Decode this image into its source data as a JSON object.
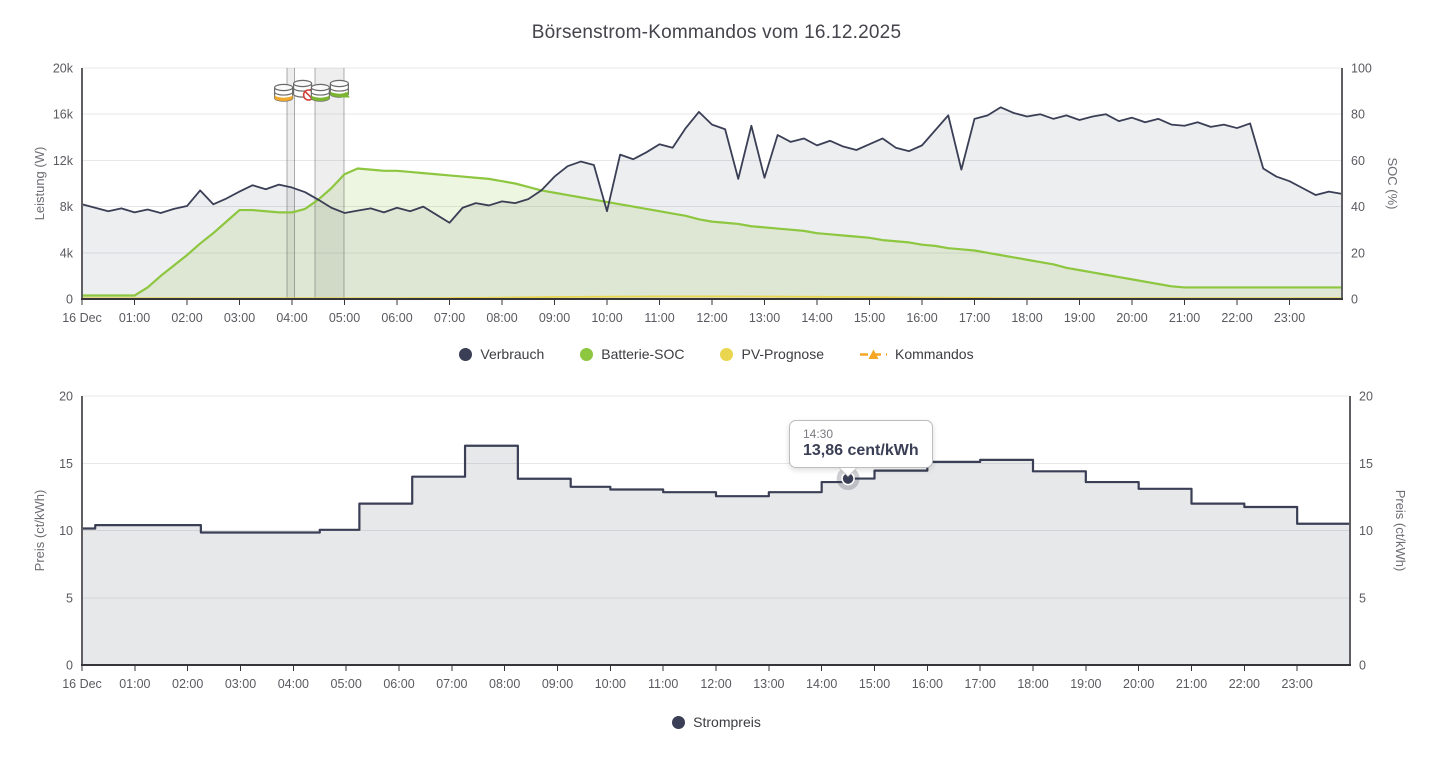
{
  "page": {
    "title": "Börsenstrom-Kommandos vom 16.12.2025"
  },
  "colors": {
    "navy": "#3a3f55",
    "green": "#8dc63f",
    "yellow": "#e9d54e",
    "orange": "#f0a92e",
    "red": "#d4403a",
    "badge_green": "#7cb532",
    "grid": "#e7e7ea",
    "axis_dark": "#35353a",
    "axis_side": "#5f5f63",
    "tick_text": "#5a5a60",
    "axis_title_text": "#6d6d73",
    "fill_gray": "rgba(58,63,85,0.09)",
    "fill_green": "rgba(141,198,63,0.16)",
    "fill_price": "rgba(58,63,85,0.12)",
    "band_fill": "rgba(125,125,125,0.13)",
    "band_edge": "rgba(110,110,110,0.55)"
  },
  "chart_data": [
    {
      "type": "line",
      "name": "power-soc-chart",
      "x_tick_labels": [
        "16 Dec",
        "01:00",
        "02:00",
        "03:00",
        "04:00",
        "05:00",
        "06:00",
        "07:00",
        "08:00",
        "09:00",
        "10:00",
        "11:00",
        "12:00",
        "13:00",
        "14:00",
        "15:00",
        "16:00",
        "17:00",
        "18:00",
        "19:00",
        "20:00",
        "21:00",
        "22:00",
        "23:00"
      ],
      "x_range_hours": [
        0,
        24
      ],
      "grid": true,
      "y_left": {
        "label": "Leistung (W)",
        "range": [
          0,
          20000
        ],
        "tick_values": [
          0,
          4000,
          8000,
          12000,
          16000,
          20000
        ],
        "tick_labels": [
          "0",
          "4k",
          "8k",
          "12k",
          "16k",
          "20k"
        ]
      },
      "y_right": {
        "label": "SOC (%)",
        "range": [
          0,
          100
        ],
        "tick_values": [
          0,
          20,
          40,
          60,
          80,
          100
        ],
        "tick_labels": [
          "0",
          "20",
          "40",
          "60",
          "80",
          "100"
        ]
      },
      "legend": [
        {
          "label": "Verbrauch",
          "color": "#3a3f55",
          "marker": "circle"
        },
        {
          "label": "Batterie-SOC",
          "color": "#8dc63f",
          "marker": "circle"
        },
        {
          "label": "PV-Prognose",
          "color": "#e9d54e",
          "marker": "circle"
        },
        {
          "label": "Kommandos",
          "color": "#f5a623",
          "marker": "triangle-line"
        }
      ],
      "series": [
        {
          "id": "verbrauch",
          "name": "Verbrauch",
          "axis": "left",
          "unit": "W",
          "color": "#3a3f55",
          "width": 1.8,
          "fill": "rgba(58,63,85,0.09)",
          "step": false,
          "interval_min": 15,
          "values": [
            8200,
            7900,
            7600,
            7850,
            7500,
            7750,
            7450,
            7800,
            8050,
            9400,
            8200,
            8700,
            9300,
            9850,
            9500,
            9900,
            9650,
            9250,
            8600,
            7900,
            7450,
            7650,
            7850,
            7500,
            7900,
            7600,
            8000,
            7300,
            6600,
            7900,
            8300,
            8100,
            8450,
            8300,
            8650,
            9400,
            10600,
            11500,
            11900,
            11600,
            7600,
            12500,
            12100,
            12700,
            13400,
            13100,
            14800,
            16200,
            15100,
            14700,
            10400,
            15000,
            10500,
            14200,
            13600,
            13900,
            13300,
            13700,
            13200,
            12900,
            13400,
            13900,
            13100,
            12800,
            13300,
            14600,
            15900,
            11200,
            15600,
            15900,
            16600,
            16100,
            15800,
            16000,
            15600,
            15900,
            15500,
            15800,
            16000,
            15400,
            15700,
            15300,
            15600,
            15100,
            15000,
            15300,
            14900,
            15100,
            14800,
            15200,
            11300,
            10600,
            10200,
            9600,
            9000,
            9300,
            9100
          ]
        },
        {
          "id": "batterie-soc",
          "name": "Batterie-SOC",
          "axis": "right",
          "unit": "%",
          "color": "#8dc63f",
          "width": 2.2,
          "fill": "rgba(141,198,63,0.16)",
          "step": false,
          "interval_min": 15,
          "values": [
            1.5,
            1.5,
            1.5,
            1.5,
            1.5,
            5,
            10,
            14.5,
            19,
            24,
            28.5,
            33.5,
            38.5,
            38.5,
            38,
            37.5,
            37.5,
            39,
            43,
            48,
            54,
            56.5,
            56,
            55.5,
            55.5,
            55,
            54.5,
            54,
            53.5,
            53,
            52.5,
            52,
            51,
            50,
            48.5,
            47,
            46,
            45,
            44,
            43,
            42,
            41,
            40,
            39,
            38,
            37,
            36,
            34.5,
            33.5,
            33,
            32.5,
            31.5,
            31,
            30.5,
            30,
            29.5,
            28.5,
            28,
            27.5,
            27,
            26.5,
            25.5,
            25,
            24.5,
            23.5,
            23,
            22,
            21.5,
            21,
            20,
            19,
            18,
            17,
            16,
            15,
            13.5,
            12.5,
            11.5,
            10.5,
            9.5,
            8.5,
            7.5,
            6.5,
            5.5,
            5,
            5,
            5,
            5,
            5,
            5,
            5,
            5,
            5,
            5,
            5,
            5,
            5
          ]
        },
        {
          "id": "pv-prognose",
          "name": "PV-Prognose",
          "axis": "left",
          "unit": "W",
          "color": "#e9d54e",
          "width": 1.8,
          "fill": null,
          "step": false,
          "interval_min": 60,
          "values": [
            60,
            60,
            60,
            60,
            60,
            60,
            60,
            80,
            120,
            170,
            200,
            220,
            220,
            210,
            190,
            160,
            120,
            90,
            60,
            60,
            60,
            60,
            60,
            60,
            60
          ]
        }
      ],
      "command_windows": [
        {
          "from_h": 3.9,
          "to_h": 4.05
        },
        {
          "from_h": 4.44,
          "to_h": 4.99
        }
      ],
      "command_icons": [
        {
          "at_h": 4.05,
          "icons": [
            "storage-orange",
            "storage-blocked"
          ]
        },
        {
          "at_h": 4.75,
          "icons": [
            "storage-green",
            "storage-charge"
          ]
        }
      ]
    },
    {
      "type": "line-step",
      "name": "price-chart",
      "x_tick_labels": [
        "16 Dec",
        "01:00",
        "02:00",
        "03:00",
        "04:00",
        "05:00",
        "06:00",
        "07:00",
        "08:00",
        "09:00",
        "10:00",
        "11:00",
        "12:00",
        "13:00",
        "14:00",
        "15:00",
        "16:00",
        "17:00",
        "18:00",
        "19:00",
        "20:00",
        "21:00",
        "22:00",
        "23:00"
      ],
      "x_range_hours": [
        0,
        24
      ],
      "grid": true,
      "y_left": {
        "label": "Preis (ct/kWh)",
        "range": [
          0,
          20
        ],
        "tick_values": [
          0,
          5,
          10,
          15,
          20
        ],
        "tick_labels": [
          "0",
          "5",
          "10",
          "15",
          "20"
        ]
      },
      "y_right": {
        "label": "Preis (ct/kWh)",
        "range": [
          0,
          20
        ],
        "tick_values": [
          0,
          5,
          10,
          15,
          20
        ],
        "tick_labels": [
          "0",
          "5",
          "10",
          "15",
          "20"
        ]
      },
      "legend": [
        {
          "label": "Strompreis",
          "color": "#3a3f55",
          "marker": "circle"
        }
      ],
      "series": [
        {
          "id": "strompreis",
          "name": "Strompreis",
          "axis": "left",
          "unit": "ct/kWh",
          "color": "#3a3f55",
          "width": 2.2,
          "fill": "rgba(58,63,85,0.12)",
          "step": true,
          "interval_min": 15,
          "values": [
            10.15,
            10.4,
            10.4,
            10.4,
            10.4,
            10.4,
            10.4,
            10.4,
            10.4,
            9.85,
            9.85,
            9.85,
            9.85,
            9.85,
            9.85,
            9.85,
            9.85,
            9.85,
            10.05,
            10.05,
            10.05,
            12,
            12,
            12,
            12,
            14,
            14,
            14,
            14,
            16.3,
            16.3,
            16.3,
            16.3,
            13.85,
            13.85,
            13.85,
            13.85,
            13.25,
            13.25,
            13.25,
            13.05,
            13.05,
            13.05,
            13.05,
            12.85,
            12.85,
            12.85,
            12.85,
            12.55,
            12.55,
            12.55,
            12.55,
            12.85,
            12.85,
            12.85,
            12.85,
            13.6,
            13.6,
            13.86,
            13.86,
            14.45,
            14.45,
            14.45,
            14.45,
            15.1,
            15.1,
            15.1,
            15.1,
            15.25,
            15.25,
            15.25,
            15.25,
            14.4,
            14.4,
            14.4,
            14.4,
            13.6,
            13.6,
            13.6,
            13.6,
            13.1,
            13.1,
            13.1,
            13.1,
            12,
            12,
            12,
            12,
            11.75,
            11.75,
            11.75,
            11.75,
            10.5,
            10.5,
            10.5,
            10.5,
            10.5
          ]
        }
      ],
      "tooltip": {
        "time": "14:30",
        "value_label": "13,86 cent/kWh",
        "at_h": 14.5,
        "at_value": 13.86
      }
    }
  ]
}
